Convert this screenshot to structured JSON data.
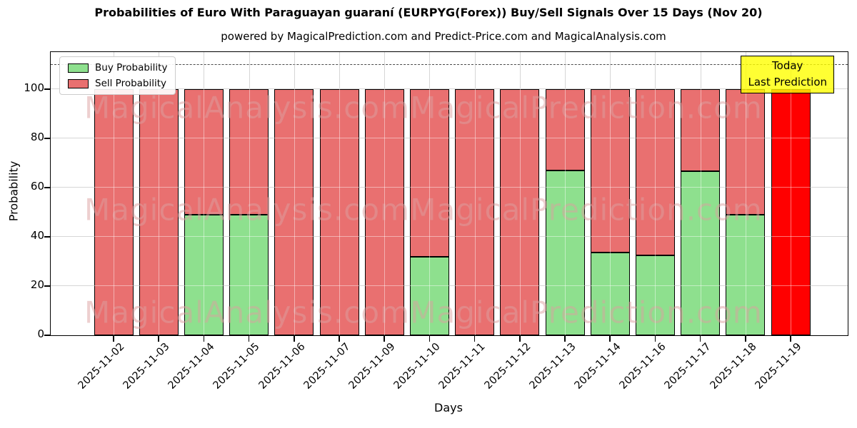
{
  "chart_data": {
    "type": "bar",
    "stacked": true,
    "title": "Probabilities of Euro With Paraguayan guaraní (EURPYG(Forex)) Buy/Sell Signals Over 15 Days (Nov 20)",
    "subtitle": "powered by MagicalPrediction.com and Predict-Price.com and MagicalAnalysis.com",
    "xlabel": "Days",
    "ylabel": "Probability",
    "ylim": [
      0,
      115
    ],
    "yticks": [
      0,
      20,
      40,
      60,
      80,
      100
    ],
    "grid": true,
    "dashed_hline": 110,
    "legend_position": "upper-left",
    "categories": [
      "2025-11-02",
      "2025-11-03",
      "2025-11-04",
      "2025-11-05",
      "2025-11-06",
      "2025-11-07",
      "2025-11-09",
      "2025-11-10",
      "2025-11-11",
      "2025-11-12",
      "2025-11-13",
      "2025-11-14",
      "2025-11-16",
      "2025-11-17",
      "2025-11-18",
      "2025-11-19"
    ],
    "series": [
      {
        "name": "Buy Probability",
        "color": "#8ee08e",
        "values": [
          0,
          0,
          49,
          49,
          0,
          0,
          0,
          32,
          0,
          0,
          67,
          33.5,
          32.5,
          66.5,
          49,
          0
        ]
      },
      {
        "name": "Sell Probability",
        "color": "#e97070",
        "values": [
          100,
          100,
          51,
          51,
          100,
          100,
          100,
          68,
          100,
          100,
          33,
          66.5,
          67.5,
          33.5,
          51,
          100
        ]
      }
    ],
    "highlight_bar": {
      "category": "2025-11-19",
      "index": 15,
      "color": "#ff0000"
    },
    "annotation": {
      "lines": [
        "Today",
        "Last Prediction"
      ],
      "bg_color": "#ffff00"
    },
    "watermarks": [
      "MagicalAnalysis.com",
      "MagicalPrediction.com"
    ]
  }
}
